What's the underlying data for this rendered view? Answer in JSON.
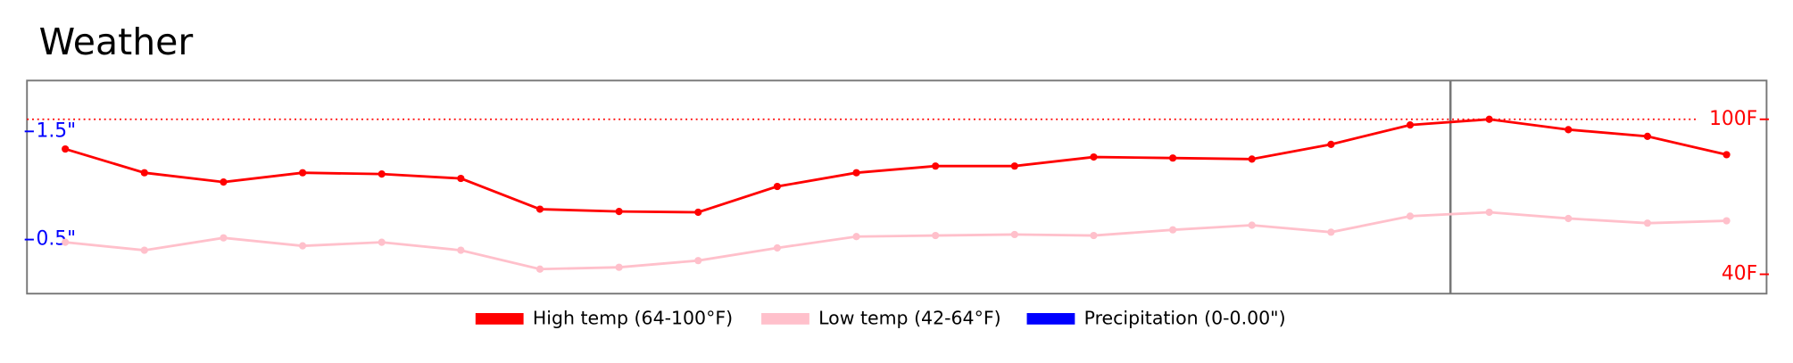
{
  "chart_data": {
    "type": "line",
    "title": "Weather",
    "series": [
      {
        "name": "High temp (64-100°F)",
        "color": "#ff0000",
        "axis": "y",
        "values": [
          88.5,
          79.3,
          75.7,
          79.3,
          78.8,
          77.1,
          65.2,
          64.3,
          64,
          74.0,
          79.3,
          81.9,
          81.9,
          85.4,
          85.0,
          84.6,
          90.3,
          97.8,
          100,
          96.0,
          93.4,
          86.3
        ]
      },
      {
        "name": "Low temp (42-64°F)",
        "color": "#ffc0cb",
        "axis": "y",
        "values": [
          52.4,
          49.3,
          54.1,
          51.0,
          52.4,
          49.3,
          42,
          42.7,
          45.3,
          50.2,
          54.6,
          55.0,
          55.4,
          55.0,
          57.2,
          59.0,
          56.3,
          62.5,
          64,
          61.6,
          59.8,
          60.7
        ]
      },
      {
        "name": "Precipitation (0-0.00\")",
        "color": "#0000ff",
        "axis": "y2",
        "values": [
          0,
          0,
          0,
          0,
          0,
          0,
          0,
          0,
          0,
          0,
          0,
          0,
          0,
          0,
          0,
          0,
          0,
          0,
          0,
          0,
          0,
          0
        ]
      }
    ],
    "ylim": [
      32.5,
      115
    ],
    "yticks": [
      {
        "value": 100,
        "label": "100F"
      },
      {
        "value": 40,
        "label": "40F"
      }
    ],
    "y2lim": [
      0,
      1.97
    ],
    "y2ticks": [
      {
        "value": 1.5,
        "label": "1.5\""
      },
      {
        "value": 0.5,
        "label": "0.5\""
      }
    ],
    "legend": "bottom"
  }
}
